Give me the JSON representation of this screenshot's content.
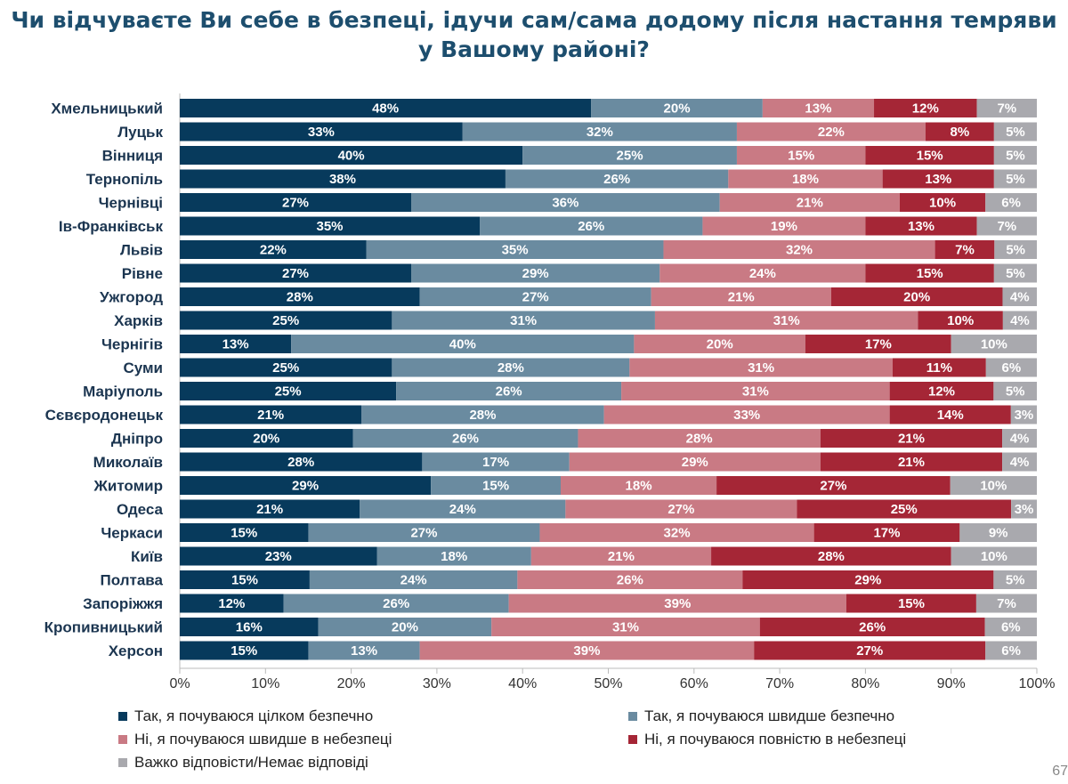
{
  "title": "Чи відчуваєте Ви себе в безпеці, ідучи сам/сама додому після настання темряви у Вашому районі?",
  "page_number": "67",
  "chart_data": {
    "type": "bar",
    "orientation": "horizontal",
    "stacked": true,
    "title": "Чи відчуваєте Ви себе в безпеці, ідучи сам/сама додому після настання темряви у Вашому районі?",
    "xlim": [
      0,
      100
    ],
    "x_ticks": [
      "0%",
      "10%",
      "20%",
      "30%",
      "40%",
      "50%",
      "60%",
      "70%",
      "80%",
      "90%",
      "100%"
    ],
    "grid": false,
    "legend_placement": "bottom",
    "categories": [
      "Хмельницький",
      "Луцьк",
      "Вінниця",
      "Тернопіль",
      "Чернівці",
      "Ів-Франківськ",
      "Львів",
      "Рівне",
      "Ужгород",
      "Харків",
      "Чернігів",
      "Суми",
      "Маріуполь",
      "Сєвєродонецьк",
      "Дніпро",
      "Миколаїв",
      "Житомир",
      "Одеса",
      "Черкаси",
      "Київ",
      "Полтава",
      "Запоріжжя",
      "Кропивницький",
      "Херсон"
    ],
    "series": [
      {
        "name": "Так, я почуваюся цілком безпечно",
        "color": "#073a5c",
        "values": [
          48,
          33,
          40,
          38,
          27,
          35,
          22,
          27,
          28,
          25,
          13,
          25,
          25,
          21,
          20,
          28,
          29,
          21,
          15,
          23,
          15,
          12,
          16,
          15
        ]
      },
      {
        "name": "Так, я почуваюся швидше безпечно",
        "color": "#6a8ba0",
        "values": [
          20,
          32,
          25,
          26,
          36,
          26,
          35,
          29,
          27,
          31,
          40,
          28,
          26,
          28,
          26,
          17,
          15,
          24,
          27,
          18,
          24,
          26,
          20,
          13
        ]
      },
      {
        "name": "Ні, я почуваюся швидше в небезпеці",
        "color": "#c97a84",
        "values": [
          13,
          22,
          15,
          18,
          21,
          19,
          32,
          24,
          21,
          31,
          20,
          31,
          31,
          33,
          28,
          29,
          18,
          27,
          32,
          21,
          26,
          39,
          31,
          39
        ]
      },
      {
        "name": "Ні, я почуваюся повністю в небезпеці",
        "color": "#a52636",
        "values": [
          12,
          8,
          15,
          13,
          10,
          13,
          7,
          15,
          20,
          10,
          17,
          11,
          12,
          14,
          21,
          21,
          27,
          25,
          17,
          28,
          29,
          15,
          26,
          27
        ]
      },
      {
        "name": "Важко відповісти/Немає відповіді",
        "color": "#a9a9ae",
        "values": [
          7,
          5,
          5,
          5,
          6,
          7,
          5,
          5,
          4,
          4,
          10,
          6,
          5,
          3,
          4,
          4,
          10,
          3,
          9,
          10,
          5,
          7,
          6,
          6
        ]
      }
    ]
  }
}
